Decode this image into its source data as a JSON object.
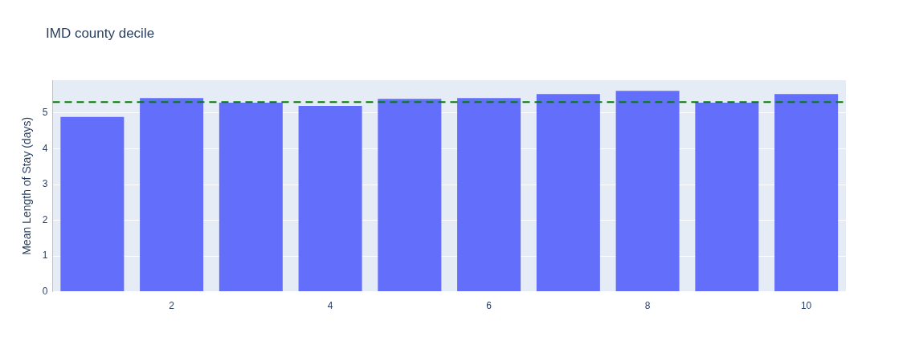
{
  "chart_data": {
    "type": "bar",
    "title": "IMD county decile",
    "y_label": "Mean Length of Stay (days)",
    "categories": [
      null,
      "2",
      null,
      "4",
      null,
      "6",
      null,
      "8",
      null,
      "10"
    ],
    "values": [
      4.89,
      5.42,
      5.29,
      5.2,
      5.4,
      5.42,
      5.53,
      5.62,
      5.29,
      5.53
    ],
    "color": "#636efa",
    "ylim": [
      0,
      5.92
    ],
    "yticks": [
      0,
      1,
      2,
      3,
      4,
      5
    ],
    "grid": true,
    "reference_line": {
      "value": 5.31,
      "color": "#008000",
      "line_style": "dashed"
    }
  }
}
